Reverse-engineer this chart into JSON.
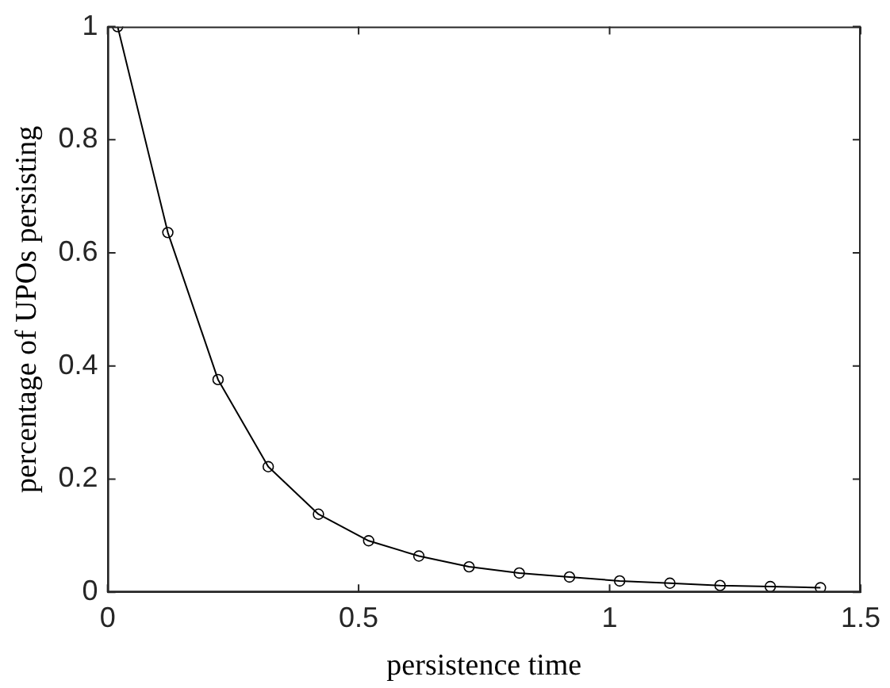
{
  "chart_data": {
    "type": "line",
    "xlabel": "persistence time",
    "ylabel": "percentage of UPOs persisting",
    "x": [
      0.02,
      0.12,
      0.22,
      0.32,
      0.42,
      0.52,
      0.62,
      0.72,
      0.82,
      0.92,
      1.02,
      1.12,
      1.22,
      1.32,
      1.42
    ],
    "series": [
      {
        "color": "#000000",
        "values": [
          1,
          0.636,
          0.376,
          0.222,
          0.138,
          0.091,
          0.064,
          0.045,
          0.034,
          0.027,
          0.02,
          0.016,
          0.012,
          0.01,
          0.008
        ]
      }
    ],
    "xlim": [
      0,
      1.5
    ],
    "xticks": [
      0,
      0.5,
      1,
      1.5
    ],
    "ylim": [
      0,
      1
    ],
    "yticks": [
      0,
      0.2,
      0.4,
      0.6,
      0.8,
      1
    ],
    "grid": false,
    "legend": false,
    "marker": "circle",
    "line_style": "solid"
  }
}
